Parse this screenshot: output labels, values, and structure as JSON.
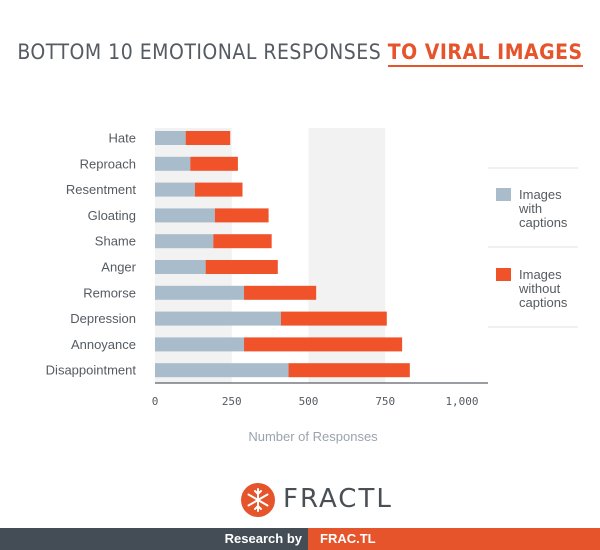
{
  "title": {
    "main": "BOTTOM 10 EMOTIONAL RESPONSES ",
    "accent": "TO VIRAL IMAGES"
  },
  "colors": {
    "with_captions": "#a8bccb",
    "without_captions": "#f0522a",
    "band": "#f2f2f2",
    "accent": "#e5542b",
    "footer_dark": "#444c56"
  },
  "chart_data": {
    "type": "bar",
    "orientation": "horizontal",
    "stacked": true,
    "categories": [
      "Hate",
      "Reproach",
      "Resentment",
      "Gloating",
      "Shame",
      "Anger",
      "Remorse",
      "Depression",
      "Annoyance",
      "Disappointment"
    ],
    "series": [
      {
        "name": "Images with captions",
        "values": [
          100,
          115,
          130,
          195,
          190,
          165,
          290,
          410,
          290,
          435
        ]
      },
      {
        "name": "Images without captions",
        "values": [
          145,
          155,
          155,
          175,
          190,
          235,
          235,
          345,
          515,
          395
        ]
      }
    ],
    "xlabel": "Number of Responses",
    "xlim": [
      0,
      1100
    ],
    "xticks": [
      0,
      250,
      500,
      750,
      1000
    ],
    "xtick_labels": [
      "0",
      "250",
      "500",
      "750",
      "1,000"
    ],
    "legend": [
      {
        "label": "Images with captions",
        "lines": [
          "Images",
          "with",
          "captions"
        ]
      },
      {
        "label": "Images without captions",
        "lines": [
          "Images",
          "without",
          "captions"
        ]
      }
    ],
    "legend_position": "right",
    "grid": "alternating vertical bands"
  },
  "logo": {
    "name": "FRACTL"
  },
  "footer": {
    "research_by": "Research by",
    "brand": "FRAC.TL"
  }
}
